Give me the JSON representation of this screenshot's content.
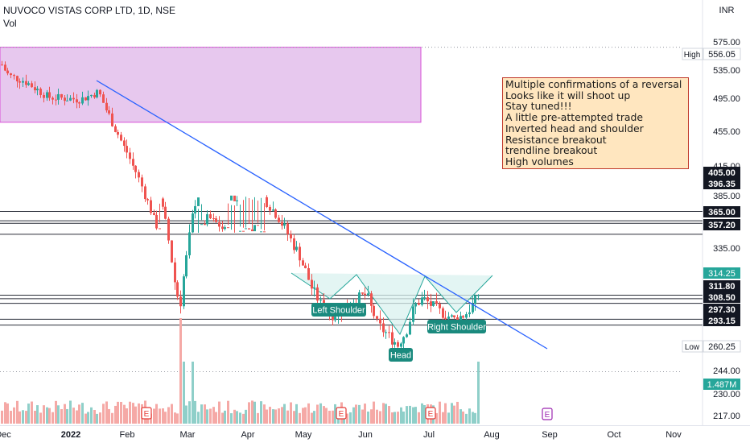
{
  "header": {
    "title": "NUVOCO VISTAS CORP LTD, 1D, NSE",
    "vol_label": "Vol",
    "currency": "INR"
  },
  "note_lines": [
    "Multiple confirmations of a reversal",
    "Looks like it will shoot up",
    "Stay tuned!!!",
    "A  little pre-attempted trade",
    "Inverted head and shoulder",
    "Resistance breakout",
    "trendline breakout",
    "High volumes"
  ],
  "chart_data": {
    "type": "candlestick",
    "symbol": "NUVOCO VISTAS CORP LTD",
    "interval": "1D",
    "exchange": "NSE",
    "currency": "INR",
    "price_axis_ticks": [
      575.0,
      535.0,
      495.0,
      455.0,
      415.0,
      385.0,
      335.0,
      244.0,
      230.0,
      217.0
    ],
    "x_axis_labels": [
      "Dec",
      "2022",
      "Feb",
      "Mar",
      "Apr",
      "May",
      "Jun",
      "Jul",
      "Aug",
      "Sep",
      "Oct",
      "Nov"
    ],
    "x_axis_bold": [
      "2022"
    ],
    "price_labels": [
      {
        "text": "556.05",
        "tag": "High"
      },
      {
        "text": "405.00"
      },
      {
        "text": "396.35"
      },
      {
        "text": "365.00"
      },
      {
        "text": "357.20"
      },
      {
        "text": "314.25"
      },
      {
        "text": "311.80"
      },
      {
        "text": "308.50"
      },
      {
        "text": "297.30"
      },
      {
        "text": "293.15"
      },
      {
        "text": "260.25",
        "tag": "Low"
      },
      {
        "text": "1.487M"
      }
    ],
    "horizontal_levels": [
      405.0,
      396.35,
      365.0,
      357.2,
      314.25,
      311.8,
      308.5,
      297.3,
      293.15
    ],
    "dotted_levels": [
      556.05,
      314.25,
      260.25
    ],
    "resistance_zone": {
      "from": "Dec",
      "to": "Jun",
      "low": 487,
      "high": 556
    },
    "annotations": [
      "Left Shoulder",
      "Head",
      "Right Shoulder"
    ],
    "earnings_markers": [
      "E",
      "E",
      "E"
    ],
    "colors": {
      "up": "#26a69a",
      "down": "#ef5350",
      "up_volume": "#8fcfc9",
      "down_volume": "#f5a9a6",
      "trendline": "#2962ff",
      "zone_fill": "#e7c8ee",
      "zone_border": "#d84fd8",
      "note_bg": "#ffe6bf",
      "note_border": "#c0392b",
      "label_teal": "#1a8a7e",
      "earnings": "#e53935",
      "earnings_future": "#9c27b0"
    }
  }
}
